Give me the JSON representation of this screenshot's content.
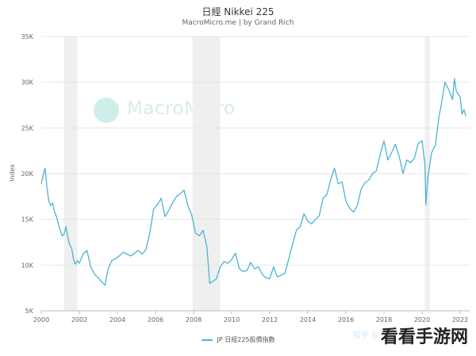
{
  "header": {
    "title": "日經 Nikkei 225",
    "subtitle": "MacroMicro.me | by Grand Rich"
  },
  "watermarks": {
    "brand": "MacroMicro",
    "zhihu": "知乎 @",
    "corner": "看看手游网"
  },
  "colors": {
    "line": "#4db3d4",
    "recession_band": "#efefef",
    "grid": "#e6e6e6"
  },
  "chart_data": {
    "type": "line",
    "title": "日經 Nikkei 225",
    "subtitle": "MacroMicro.me | by Grand Rich",
    "xlabel": "",
    "ylabel": "Index",
    "xlim": [
      2000,
      2022.5
    ],
    "ylim": [
      5000,
      35000
    ],
    "yticks": [
      5000,
      10000,
      15000,
      20000,
      25000,
      30000,
      35000
    ],
    "ytick_labels": [
      "5K",
      "10K",
      "15K",
      "20K",
      "25K",
      "30K",
      "35K"
    ],
    "xticks": [
      2000,
      2002,
      2004,
      2006,
      2008,
      2010,
      2012,
      2014,
      2016,
      2018,
      2020,
      2022
    ],
    "xtick_labels": [
      "2000",
      "2002",
      "2004",
      "2006",
      "2008",
      "2010",
      "2012",
      "2014",
      "2016",
      "2018",
      "2020",
      "2022"
    ],
    "grid": true,
    "legend_placement": "bottom",
    "recession_bands": [
      [
        2001.2,
        2001.9
      ],
      [
        2007.95,
        2009.4
      ],
      [
        2020.15,
        2020.4
      ]
    ],
    "series": [
      {
        "name": "JP 日經225股價指數",
        "x": [
          2000.0,
          2000.1,
          2000.2,
          2000.3,
          2000.4,
          2000.5,
          2000.6,
          2000.7,
          2000.8,
          2000.9,
          2001.0,
          2001.1,
          2001.2,
          2001.3,
          2001.4,
          2001.5,
          2001.6,
          2001.7,
          2001.8,
          2001.9,
          2002.0,
          2002.2,
          2002.4,
          2002.6,
          2002.8,
          2003.0,
          2003.2,
          2003.35,
          2003.5,
          2003.7,
          2003.9,
          2004.1,
          2004.3,
          2004.5,
          2004.7,
          2004.9,
          2005.1,
          2005.3,
          2005.5,
          2005.7,
          2005.9,
          2006.1,
          2006.3,
          2006.5,
          2006.7,
          2006.9,
          2007.1,
          2007.3,
          2007.5,
          2007.7,
          2007.9,
          2008.1,
          2008.3,
          2008.5,
          2008.7,
          2008.85,
          2009.0,
          2009.2,
          2009.4,
          2009.6,
          2009.8,
          2010.0,
          2010.2,
          2010.4,
          2010.6,
          2010.8,
          2011.0,
          2011.2,
          2011.4,
          2011.6,
          2011.8,
          2012.0,
          2012.2,
          2012.4,
          2012.6,
          2012.8,
          2013.0,
          2013.2,
          2013.4,
          2013.6,
          2013.8,
          2014.0,
          2014.2,
          2014.4,
          2014.6,
          2014.8,
          2015.0,
          2015.2,
          2015.4,
          2015.6,
          2015.8,
          2016.0,
          2016.2,
          2016.4,
          2016.6,
          2016.8,
          2017.0,
          2017.2,
          2017.4,
          2017.6,
          2017.8,
          2018.0,
          2018.2,
          2018.4,
          2018.6,
          2018.8,
          2019.0,
          2019.2,
          2019.4,
          2019.6,
          2019.8,
          2020.0,
          2020.15,
          2020.2,
          2020.3,
          2020.5,
          2020.7,
          2020.9,
          2021.0,
          2021.1,
          2021.2,
          2021.4,
          2021.6,
          2021.7,
          2021.8,
          2022.0,
          2022.1,
          2022.2,
          2022.3
        ],
        "y": [
          18900,
          19800,
          20600,
          18500,
          17000,
          16500,
          16800,
          15800,
          15300,
          14500,
          13800,
          13200,
          13400,
          14200,
          13000,
          12200,
          11800,
          10600,
          10100,
          10500,
          10200,
          11200,
          11600,
          9800,
          9000,
          8600,
          8100,
          7800,
          9500,
          10500,
          10700,
          11000,
          11400,
          11200,
          11000,
          11300,
          11600,
          11200,
          11700,
          13500,
          16100,
          16600,
          17300,
          15300,
          16000,
          16800,
          17500,
          17800,
          18200,
          16500,
          15500,
          13500,
          13200,
          13800,
          12000,
          8000,
          8200,
          8500,
          9800,
          10400,
          10200,
          10600,
          11300,
          9600,
          9300,
          9400,
          10300,
          9600,
          9800,
          9000,
          8600,
          8500,
          9800,
          8700,
          8900,
          9100,
          10700,
          12300,
          13800,
          14200,
          15600,
          14800,
          14500,
          15000,
          15400,
          17300,
          17700,
          19300,
          20600,
          18900,
          19100,
          17000,
          16200,
          15800,
          16500,
          18300,
          19000,
          19300,
          20000,
          20300,
          22100,
          23600,
          21500,
          22300,
          23200,
          21900,
          20000,
          21500,
          21200,
          21700,
          23300,
          23600,
          21000,
          16600,
          19500,
          22300,
          23100,
          26400,
          27400,
          28700,
          30000,
          29200,
          28100,
          30400,
          29000,
          28400,
          26500,
          27000,
          26300
        ]
      }
    ]
  }
}
